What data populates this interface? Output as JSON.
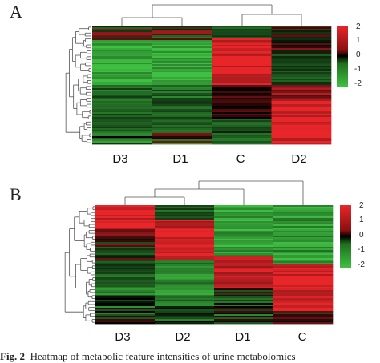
{
  "panels": [
    {
      "letter": "A",
      "columns": [
        "D3",
        "D1",
        "C",
        "D2"
      ],
      "colorbar_ticks": [
        "2",
        "1",
        "0",
        "-1",
        "-2"
      ]
    },
    {
      "letter": "B",
      "columns": [
        "D3",
        "D2",
        "D1",
        "C"
      ],
      "colorbar_ticks": [
        "2",
        "1",
        "0",
        "-1",
        "-2"
      ]
    }
  ],
  "caption": {
    "prefix": "Fig. 2",
    "text": "Heatmap of metabolic feature intensities of urine metabolomics"
  },
  "colors": {
    "high": "#e8262a",
    "mid": "#000000",
    "low": "#3fc042"
  },
  "chart_data": [
    {
      "type": "heatmap",
      "columns": [
        "D3",
        "D1",
        "C",
        "D2"
      ],
      "color_scale": [
        -2,
        2
      ],
      "column_summary": [
        {
          "column": "D3",
          "dominant": "low"
        },
        {
          "column": "D1",
          "dominant": "low"
        },
        {
          "column": "C",
          "dominant": "high"
        },
        {
          "column": "D2",
          "dominant": "mixed"
        }
      ]
    },
    {
      "type": "heatmap",
      "columns": [
        "D3",
        "D2",
        "D1",
        "C"
      ],
      "color_scale": [
        -2,
        2
      ],
      "column_summary": [
        {
          "column": "D3",
          "dominant": "mixed"
        },
        {
          "column": "D2",
          "dominant": "mixed"
        },
        {
          "column": "D1",
          "dominant": "mixed"
        },
        {
          "column": "C",
          "dominant": "mixed"
        }
      ]
    }
  ]
}
